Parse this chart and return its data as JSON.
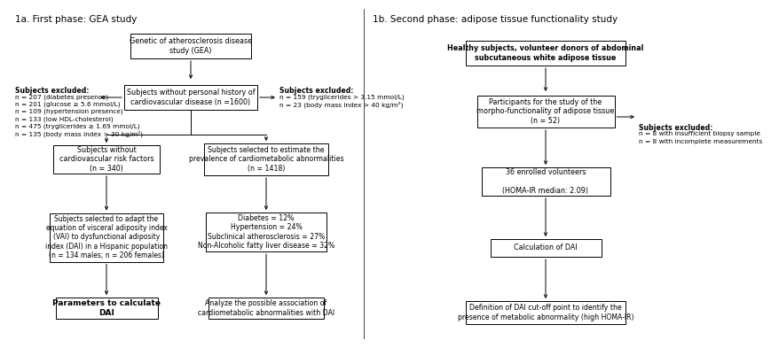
{
  "title_left": "1a. First phase: GEA study",
  "title_right": "1b. Second phase: adipose tissue functionality study",
  "bg_color": "#ffffff",
  "box_color": "#ffffff",
  "box_edge_color": "#000000",
  "text_color": "#000000",
  "arrow_color": "#000000",
  "excl_left_header": "Subjects excluded:",
  "excl_left_lines": [
    "n = 207 (diabetes presence)",
    "n = 201 (glucose ≥ 5.6 mmol/L)",
    "n = 109 (hypertension presence)",
    "n = 133 (low HDL-cholesterol)",
    "n = 475 (tryglicerides ≥ 1.69 mmol/L)",
    "n = 135 (body mass index > 30 kg/m²)"
  ],
  "excl_right1_header": "Subjects excluded:",
  "excl_right1_lines": [
    "n = 159 (tryglicerides > 3.15 mmol/L)",
    "n = 23 (body mass index > 40 kg/m²)"
  ],
  "excl_right2_header": "Subjects excluded:",
  "excl_right2_lines": [
    "n = 8 with insufficient biopsy sample",
    "n = 8 with incomplete measurements"
  ]
}
